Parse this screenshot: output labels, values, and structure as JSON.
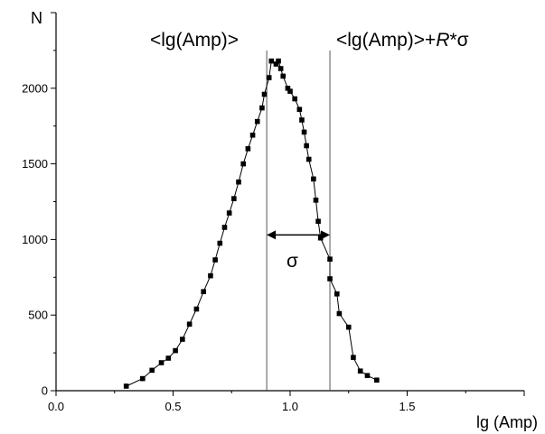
{
  "chart_data": {
    "type": "line",
    "xlabel": "lg (Amp)",
    "ylabel": "N",
    "xlim": [
      0,
      2.0
    ],
    "ylim": [
      0,
      2500
    ],
    "x_ticks": [
      0.0,
      0.5,
      1.0,
      1.5
    ],
    "x_tick_labels": [
      "0.0",
      "0.5",
      "1.0",
      "1.5"
    ],
    "y_ticks": [
      0,
      500,
      1000,
      1500,
      2000
    ],
    "y_tick_labels": [
      "0",
      "500",
      "1000",
      "1500",
      "2000"
    ],
    "grid": false,
    "series": [
      {
        "marker": "square",
        "color": "#000000",
        "points": [
          [
            0.3,
            30
          ],
          [
            0.37,
            80
          ],
          [
            0.41,
            135
          ],
          [
            0.45,
            185
          ],
          [
            0.48,
            215
          ],
          [
            0.51,
            265
          ],
          [
            0.54,
            340
          ],
          [
            0.57,
            440
          ],
          [
            0.6,
            540
          ],
          [
            0.63,
            655
          ],
          [
            0.66,
            760
          ],
          [
            0.68,
            865
          ],
          [
            0.7,
            975
          ],
          [
            0.72,
            1080
          ],
          [
            0.74,
            1175
          ],
          [
            0.76,
            1270
          ],
          [
            0.78,
            1380
          ],
          [
            0.8,
            1500
          ],
          [
            0.82,
            1600
          ],
          [
            0.84,
            1690
          ],
          [
            0.86,
            1780
          ],
          [
            0.88,
            1870
          ],
          [
            0.89,
            1960
          ],
          [
            0.91,
            2070
          ],
          [
            0.92,
            2180
          ],
          [
            0.94,
            2160
          ],
          [
            0.95,
            2180
          ],
          [
            0.96,
            2130
          ],
          [
            0.97,
            2080
          ],
          [
            0.99,
            2000
          ],
          [
            1.0,
            1980
          ],
          [
            1.02,
            1930
          ],
          [
            1.04,
            1860
          ],
          [
            1.05,
            1790
          ],
          [
            1.06,
            1710
          ],
          [
            1.07,
            1620
          ],
          [
            1.08,
            1530
          ],
          [
            1.1,
            1400
          ],
          [
            1.11,
            1260
          ],
          [
            1.12,
            1120
          ],
          [
            1.13,
            1010
          ],
          [
            1.17,
            870
          ],
          [
            1.17,
            740
          ],
          [
            1.2,
            640
          ],
          [
            1.21,
            510
          ],
          [
            1.25,
            420
          ],
          [
            1.27,
            220
          ],
          [
            1.3,
            130
          ],
          [
            1.33,
            100
          ],
          [
            1.37,
            70
          ]
        ]
      }
    ],
    "vertical_lines": [
      0.9,
      1.17
    ],
    "arrow": {
      "from_x": 1.17,
      "to_x": 0.9,
      "y": 1030
    }
  },
  "annotations": {
    "mean_label": "<lg(Amp)>",
    "mean_sigma_label_prefix": "<lg(Amp)>+",
    "mean_sigma_label_R": "R",
    "mean_sigma_label_suffix": "*σ",
    "sigma_label": "σ"
  }
}
